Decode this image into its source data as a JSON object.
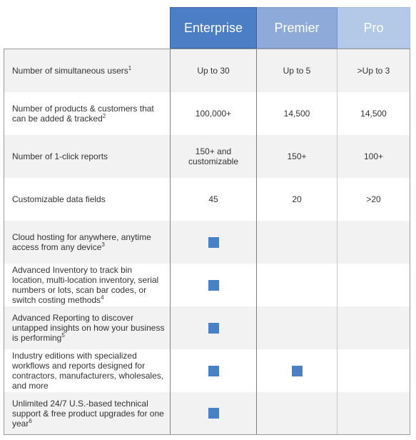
{
  "columns": [
    "Enterprise",
    "Premier",
    "Pro"
  ],
  "colors": {
    "enterprise": "#4b7ec4",
    "premier": "#8eaad8",
    "pro": "#b4c8e8",
    "check": "#4a80c4"
  },
  "rows": [
    {
      "feature": "Number of simultaneous users",
      "sup": "1",
      "enterprise": "Up to 30",
      "premier": "Up to 5",
      "pro": ">Up to 3"
    },
    {
      "feature": "Number of products & customers that can be added & tracked",
      "sup": "2",
      "enterprise": "100,000+",
      "premier": "14,500",
      "pro": "14,500"
    },
    {
      "feature": "Number of 1-click reports",
      "sup": "",
      "enterprise": "150+ and customizable",
      "premier": "150+",
      "pro": "100+"
    },
    {
      "feature": "Customizable data fields",
      "sup": "",
      "enterprise": "45",
      "premier": "20",
      "pro": ">20"
    },
    {
      "feature": "Cloud hosting for anywhere, anytime access from any device",
      "sup": "3",
      "enterprise_check": true,
      "premier_check": false,
      "pro_check": false
    },
    {
      "feature": "Advanced Inventory to track bin location, multi-location inventory, serial numbers or lots, scan bar codes, or switch costing methods",
      "sup": "4",
      "enterprise_check": true,
      "premier_check": false,
      "pro_check": false
    },
    {
      "feature": "Advanced Reporting to discover untapped insights on how your business is performing",
      "sup": "5",
      "enterprise_check": true,
      "premier_check": false,
      "pro_check": false
    },
    {
      "feature": "Industry editions with specialized workflows and reports designed for contractors, manufacturers, wholesales, and more",
      "sup": "",
      "enterprise_check": true,
      "premier_check": true,
      "pro_check": false
    },
    {
      "feature": "Unlimited 24/7 U.S.-based technical support & free product upgrades for one year",
      "sup": "6",
      "enterprise_check": true,
      "premier_check": false,
      "pro_check": false
    }
  ]
}
